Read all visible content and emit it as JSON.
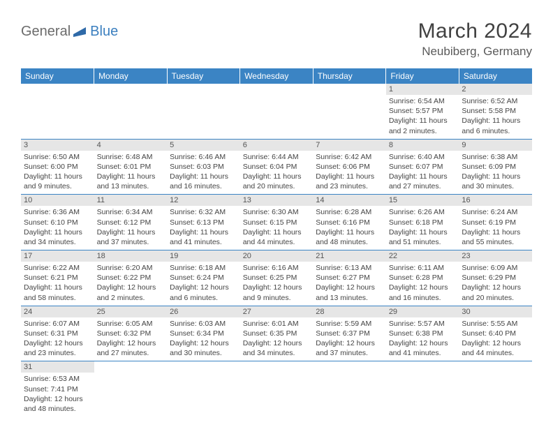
{
  "brand": {
    "part1": "General",
    "part2": "Blue"
  },
  "title": "March 2024",
  "location": "Neubiberg, Germany",
  "header_color": "#3b84c4",
  "daynum_bg": "#e6e6e6",
  "text_color": "#444444",
  "dayHeaders": [
    "Sunday",
    "Monday",
    "Tuesday",
    "Wednesday",
    "Thursday",
    "Friday",
    "Saturday"
  ],
  "weeks": [
    [
      null,
      null,
      null,
      null,
      null,
      {
        "n": "1",
        "sr": "Sunrise: 6:54 AM",
        "ss": "Sunset: 5:57 PM",
        "dl": "Daylight: 11 hours and 2 minutes."
      },
      {
        "n": "2",
        "sr": "Sunrise: 6:52 AM",
        "ss": "Sunset: 5:58 PM",
        "dl": "Daylight: 11 hours and 6 minutes."
      }
    ],
    [
      {
        "n": "3",
        "sr": "Sunrise: 6:50 AM",
        "ss": "Sunset: 6:00 PM",
        "dl": "Daylight: 11 hours and 9 minutes."
      },
      {
        "n": "4",
        "sr": "Sunrise: 6:48 AM",
        "ss": "Sunset: 6:01 PM",
        "dl": "Daylight: 11 hours and 13 minutes."
      },
      {
        "n": "5",
        "sr": "Sunrise: 6:46 AM",
        "ss": "Sunset: 6:03 PM",
        "dl": "Daylight: 11 hours and 16 minutes."
      },
      {
        "n": "6",
        "sr": "Sunrise: 6:44 AM",
        "ss": "Sunset: 6:04 PM",
        "dl": "Daylight: 11 hours and 20 minutes."
      },
      {
        "n": "7",
        "sr": "Sunrise: 6:42 AM",
        "ss": "Sunset: 6:06 PM",
        "dl": "Daylight: 11 hours and 23 minutes."
      },
      {
        "n": "8",
        "sr": "Sunrise: 6:40 AM",
        "ss": "Sunset: 6:07 PM",
        "dl": "Daylight: 11 hours and 27 minutes."
      },
      {
        "n": "9",
        "sr": "Sunrise: 6:38 AM",
        "ss": "Sunset: 6:09 PM",
        "dl": "Daylight: 11 hours and 30 minutes."
      }
    ],
    [
      {
        "n": "10",
        "sr": "Sunrise: 6:36 AM",
        "ss": "Sunset: 6:10 PM",
        "dl": "Daylight: 11 hours and 34 minutes."
      },
      {
        "n": "11",
        "sr": "Sunrise: 6:34 AM",
        "ss": "Sunset: 6:12 PM",
        "dl": "Daylight: 11 hours and 37 minutes."
      },
      {
        "n": "12",
        "sr": "Sunrise: 6:32 AM",
        "ss": "Sunset: 6:13 PM",
        "dl": "Daylight: 11 hours and 41 minutes."
      },
      {
        "n": "13",
        "sr": "Sunrise: 6:30 AM",
        "ss": "Sunset: 6:15 PM",
        "dl": "Daylight: 11 hours and 44 minutes."
      },
      {
        "n": "14",
        "sr": "Sunrise: 6:28 AM",
        "ss": "Sunset: 6:16 PM",
        "dl": "Daylight: 11 hours and 48 minutes."
      },
      {
        "n": "15",
        "sr": "Sunrise: 6:26 AM",
        "ss": "Sunset: 6:18 PM",
        "dl": "Daylight: 11 hours and 51 minutes."
      },
      {
        "n": "16",
        "sr": "Sunrise: 6:24 AM",
        "ss": "Sunset: 6:19 PM",
        "dl": "Daylight: 11 hours and 55 minutes."
      }
    ],
    [
      {
        "n": "17",
        "sr": "Sunrise: 6:22 AM",
        "ss": "Sunset: 6:21 PM",
        "dl": "Daylight: 11 hours and 58 minutes."
      },
      {
        "n": "18",
        "sr": "Sunrise: 6:20 AM",
        "ss": "Sunset: 6:22 PM",
        "dl": "Daylight: 12 hours and 2 minutes."
      },
      {
        "n": "19",
        "sr": "Sunrise: 6:18 AM",
        "ss": "Sunset: 6:24 PM",
        "dl": "Daylight: 12 hours and 6 minutes."
      },
      {
        "n": "20",
        "sr": "Sunrise: 6:16 AM",
        "ss": "Sunset: 6:25 PM",
        "dl": "Daylight: 12 hours and 9 minutes."
      },
      {
        "n": "21",
        "sr": "Sunrise: 6:13 AM",
        "ss": "Sunset: 6:27 PM",
        "dl": "Daylight: 12 hours and 13 minutes."
      },
      {
        "n": "22",
        "sr": "Sunrise: 6:11 AM",
        "ss": "Sunset: 6:28 PM",
        "dl": "Daylight: 12 hours and 16 minutes."
      },
      {
        "n": "23",
        "sr": "Sunrise: 6:09 AM",
        "ss": "Sunset: 6:29 PM",
        "dl": "Daylight: 12 hours and 20 minutes."
      }
    ],
    [
      {
        "n": "24",
        "sr": "Sunrise: 6:07 AM",
        "ss": "Sunset: 6:31 PM",
        "dl": "Daylight: 12 hours and 23 minutes."
      },
      {
        "n": "25",
        "sr": "Sunrise: 6:05 AM",
        "ss": "Sunset: 6:32 PM",
        "dl": "Daylight: 12 hours and 27 minutes."
      },
      {
        "n": "26",
        "sr": "Sunrise: 6:03 AM",
        "ss": "Sunset: 6:34 PM",
        "dl": "Daylight: 12 hours and 30 minutes."
      },
      {
        "n": "27",
        "sr": "Sunrise: 6:01 AM",
        "ss": "Sunset: 6:35 PM",
        "dl": "Daylight: 12 hours and 34 minutes."
      },
      {
        "n": "28",
        "sr": "Sunrise: 5:59 AM",
        "ss": "Sunset: 6:37 PM",
        "dl": "Daylight: 12 hours and 37 minutes."
      },
      {
        "n": "29",
        "sr": "Sunrise: 5:57 AM",
        "ss": "Sunset: 6:38 PM",
        "dl": "Daylight: 12 hours and 41 minutes."
      },
      {
        "n": "30",
        "sr": "Sunrise: 5:55 AM",
        "ss": "Sunset: 6:40 PM",
        "dl": "Daylight: 12 hours and 44 minutes."
      }
    ],
    [
      {
        "n": "31",
        "sr": "Sunrise: 6:53 AM",
        "ss": "Sunset: 7:41 PM",
        "dl": "Daylight: 12 hours and 48 minutes."
      },
      null,
      null,
      null,
      null,
      null,
      null
    ]
  ]
}
